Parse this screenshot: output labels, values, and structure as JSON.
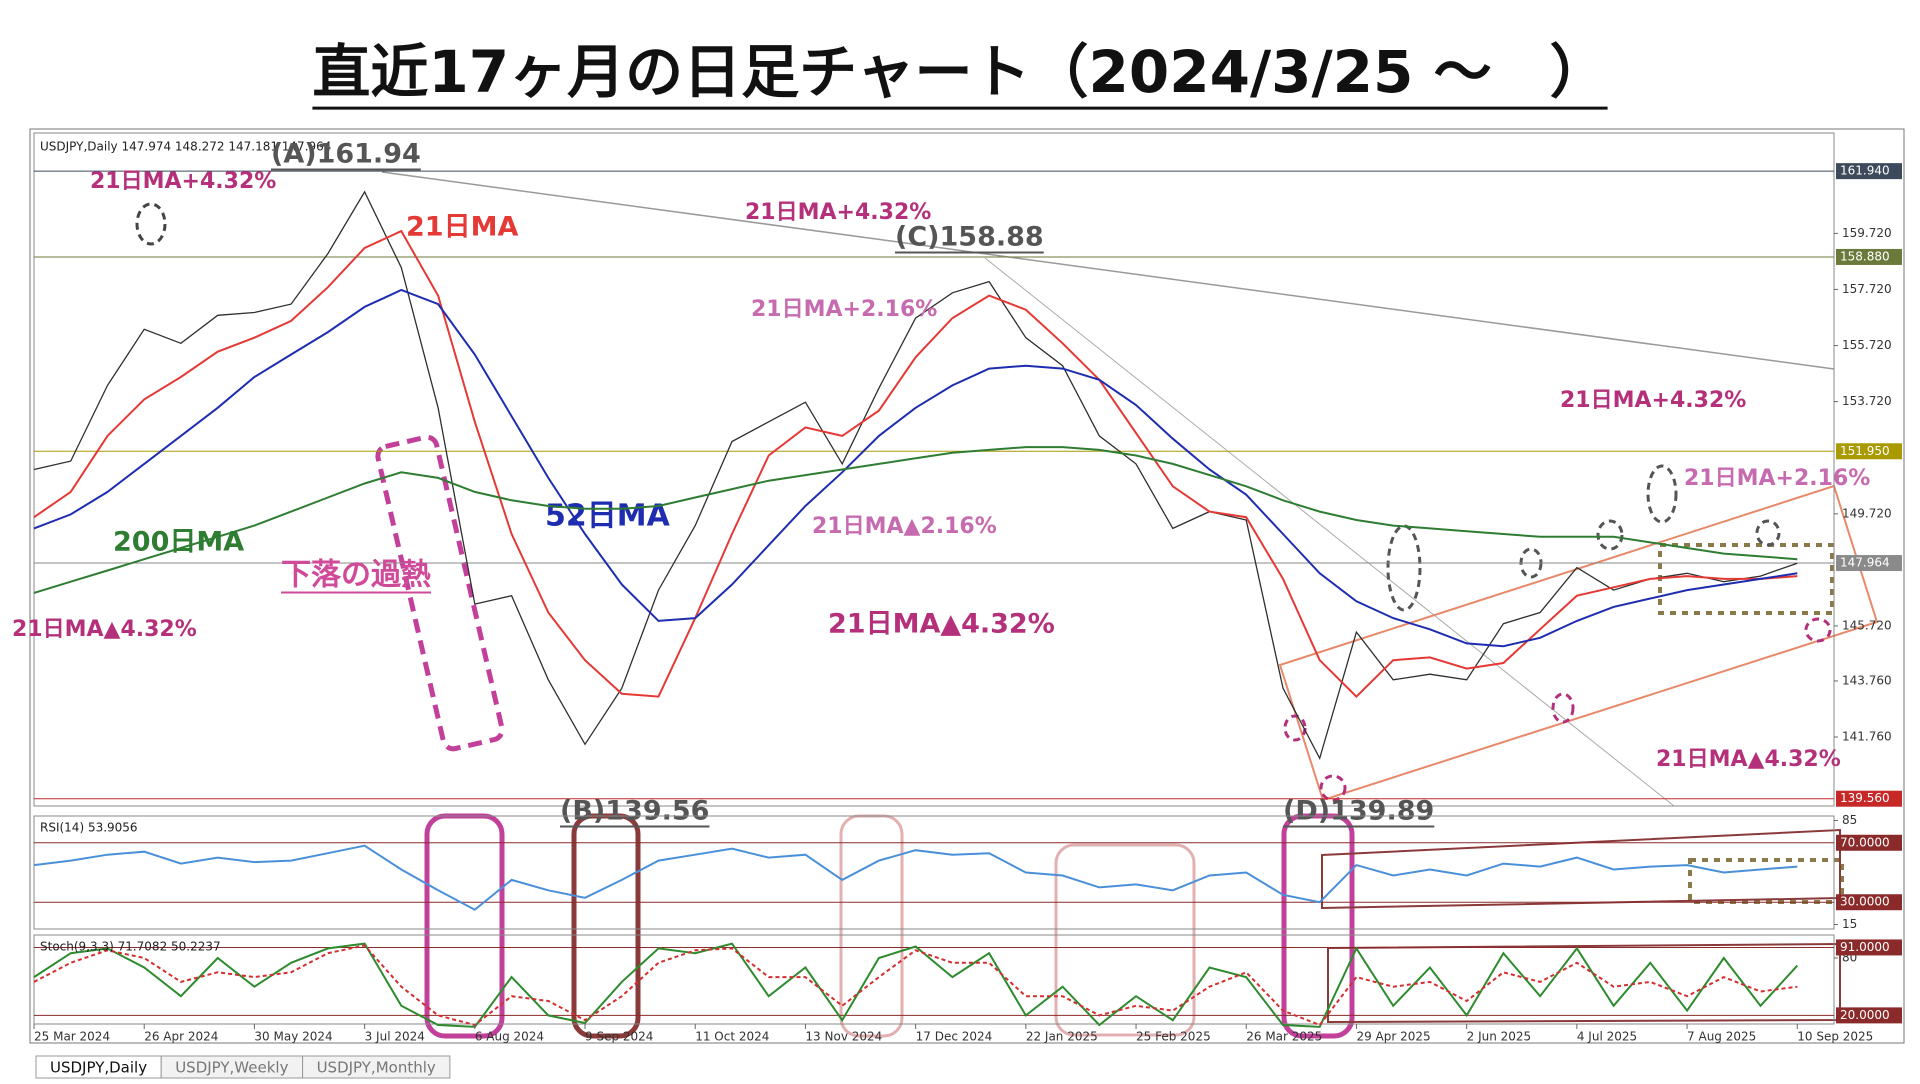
{
  "title": "直近17ヶ月の日足チャート（2024/3/25 ～　）",
  "tabs": [
    "USDJPY,Daily",
    "USDJPY,Weekly",
    "USDJPY,Monthly"
  ],
  "chart_data": [
    {
      "type": "line",
      "info": "USDJPY,Daily  147.974 148.272 147.181 147.964",
      "x": [
        0,
        8,
        16,
        24,
        32,
        40,
        48,
        56,
        64,
        72,
        80,
        88,
        96,
        104,
        112,
        120,
        128,
        136,
        144,
        152,
        160,
        168,
        176,
        184,
        192,
        200,
        208,
        216,
        224,
        232,
        240,
        248,
        256,
        264,
        272,
        280,
        288,
        296,
        304,
        312,
        320,
        328,
        336,
        344,
        352,
        360,
        368,
        376,
        384
      ],
      "xlim": [
        0,
        392
      ],
      "ylim": [
        139.3,
        163.3
      ],
      "yticks": [
        {
          "value": 159.72,
          "label": "159.720"
        },
        {
          "value": 157.72,
          "label": "157.720"
        },
        {
          "value": 155.72,
          "label": "155.720"
        },
        {
          "value": 153.72,
          "label": "153.720"
        },
        {
          "value": 149.72,
          "label": "149.720"
        },
        {
          "value": 145.72,
          "label": "145.720"
        },
        {
          "value": 143.76,
          "label": "143.760"
        },
        {
          "value": 141.76,
          "label": "141.760"
        }
      ],
      "level_lines": [
        {
          "value": 161.94,
          "label": "161.940",
          "color": "#3d4a5c"
        },
        {
          "value": 158.88,
          "label": "158.880",
          "color": "#6b7a3a"
        },
        {
          "value": 151.95,
          "label": "151.950",
          "color": "#a89a00"
        },
        {
          "value": 147.964,
          "label": "147.964",
          "color": "#8a8a8a"
        },
        {
          "value": 139.56,
          "label": "139.560",
          "color": "#c62828"
        }
      ],
      "series": [
        {
          "color": "#2f2f2f",
          "values": [
            151.3,
            151.6,
            154.3,
            156.3,
            155.8,
            156.8,
            156.9,
            157.2,
            159.0,
            161.2,
            158.5,
            153.5,
            146.5,
            146.8,
            143.8,
            141.5,
            143.5,
            147.0,
            149.3,
            152.3,
            153.0,
            153.7,
            151.5,
            154.2,
            156.7,
            157.6,
            158.0,
            156.0,
            155.0,
            152.5,
            151.5,
            149.2,
            149.8,
            149.5,
            143.5,
            141.0,
            145.5,
            143.8,
            144.0,
            143.8,
            145.8,
            146.2,
            147.8,
            147.0,
            147.4,
            147.6,
            147.3,
            147.5,
            147.96
          ]
        },
        {
          "name": "21日MA",
          "color": "#e53935",
          "values": [
            149.6,
            150.5,
            152.5,
            153.8,
            154.6,
            155.5,
            156.0,
            156.6,
            157.8,
            159.2,
            159.8,
            157.5,
            153.0,
            149.0,
            146.2,
            144.5,
            143.3,
            143.2,
            146.0,
            149.0,
            151.8,
            152.8,
            152.5,
            153.4,
            155.3,
            156.7,
            157.5,
            157.0,
            155.8,
            154.5,
            152.6,
            150.7,
            149.8,
            149.6,
            147.4,
            144.5,
            143.2,
            144.5,
            144.6,
            144.2,
            144.4,
            145.6,
            146.8,
            147.1,
            147.4,
            147.5,
            147.4,
            147.4,
            147.5
          ]
        },
        {
          "name": "52日MA",
          "color": "#1e2db0",
          "values": [
            149.2,
            149.7,
            150.5,
            151.5,
            152.5,
            153.5,
            154.6,
            155.4,
            156.2,
            157.1,
            157.7,
            157.2,
            155.4,
            153.2,
            151.0,
            149.0,
            147.2,
            145.9,
            146.0,
            147.2,
            148.6,
            150.0,
            151.2,
            152.5,
            153.5,
            154.3,
            154.9,
            155.0,
            154.9,
            154.5,
            153.6,
            152.4,
            151.3,
            150.4,
            149.0,
            147.6,
            146.6,
            146.0,
            145.6,
            145.1,
            145.0,
            145.3,
            145.9,
            146.4,
            146.7,
            147.0,
            147.2,
            147.4,
            147.6
          ]
        },
        {
          "name": "200日MA",
          "color": "#2e7d32",
          "values": [
            146.9,
            147.3,
            147.7,
            148.1,
            148.5,
            148.9,
            149.3,
            149.8,
            150.3,
            150.8,
            151.2,
            151.0,
            150.5,
            150.2,
            150.0,
            149.9,
            149.9,
            150.0,
            150.3,
            150.6,
            150.9,
            151.1,
            151.3,
            151.5,
            151.7,
            151.9,
            152.0,
            152.1,
            152.1,
            152.0,
            151.8,
            151.5,
            151.1,
            150.7,
            150.2,
            149.8,
            149.5,
            149.3,
            149.2,
            149.1,
            149.0,
            148.9,
            148.9,
            148.9,
            148.7,
            148.5,
            148.3,
            148.2,
            148.1
          ]
        }
      ],
      "annotations": [
        {
          "text": "(A)161.94",
          "color": "#555555",
          "underline": true
        },
        {
          "text": "21日MA+4.32%",
          "color": "#b5307a"
        },
        {
          "text": "21日MA+4.32%",
          "color": "#b5307a"
        },
        {
          "text": "(C)158.88",
          "color": "#555555",
          "underline": true
        },
        {
          "text": "21日MA+2.16%",
          "color": "#c76bb0"
        },
        {
          "text": "下落の過熱",
          "color": "#d04a9a",
          "underline": true
        },
        {
          "text": "21日MA▲4.32%",
          "color": "#b5307a"
        },
        {
          "text": "21日MA▲2.16%",
          "color": "#c76bb0"
        },
        {
          "text": "21日MA▲4.32%",
          "color": "#b5307a"
        },
        {
          "text": "21日MA+4.32%",
          "color": "#b5307a"
        },
        {
          "text": "21日MA+2.16%",
          "color": "#c76bb0"
        },
        {
          "text": "21日MA▲4.32%",
          "color": "#b5307a"
        },
        {
          "text": "(B)139.56",
          "color": "#555555",
          "underline": true
        },
        {
          "text": "(D)139.89",
          "color": "#555555",
          "underline": true
        }
      ]
    },
    {
      "type": "line",
      "title": "RSI(14) 53.9056",
      "x": [
        0,
        8,
        16,
        24,
        32,
        40,
        48,
        56,
        64,
        72,
        80,
        88,
        96,
        104,
        112,
        120,
        128,
        136,
        144,
        152,
        160,
        168,
        176,
        184,
        192,
        200,
        208,
        216,
        224,
        232,
        240,
        248,
        256,
        264,
        272,
        280,
        288,
        296,
        304,
        312,
        320,
        328,
        336,
        344,
        352,
        360,
        368,
        376,
        384
      ],
      "xlim": [
        0,
        392
      ],
      "ylim": [
        12,
        88
      ],
      "yticks": [
        85,
        15
      ],
      "level_lines": [
        {
          "value": 70,
          "label": "70.0000",
          "color": "#8b2a2a"
        },
        {
          "value": 30,
          "label": "30.0000",
          "color": "#8b2a2a"
        }
      ],
      "series": [
        {
          "color": "#4a90d9",
          "values": [
            55,
            58,
            62,
            64,
            56,
            60,
            57,
            58,
            63,
            68,
            52,
            38,
            25,
            45,
            38,
            33,
            45,
            58,
            62,
            66,
            60,
            62,
            45,
            58,
            65,
            62,
            63,
            50,
            48,
            40,
            42,
            38,
            48,
            50,
            35,
            30,
            55,
            48,
            52,
            48,
            56,
            54,
            60,
            52,
            54,
            55,
            50,
            52,
            54
          ]
        }
      ]
    },
    {
      "type": "line",
      "title": "Stoch(9,3,3) 71.7082 50.2237",
      "x": [
        0,
        8,
        16,
        24,
        32,
        40,
        48,
        56,
        64,
        72,
        80,
        88,
        96,
        104,
        112,
        120,
        128,
        136,
        144,
        152,
        160,
        168,
        176,
        184,
        192,
        200,
        208,
        216,
        224,
        232,
        240,
        248,
        256,
        264,
        272,
        280,
        288,
        296,
        304,
        312,
        320,
        328,
        336,
        344,
        352,
        360,
        368,
        376,
        384
      ],
      "xlim": [
        0,
        392
      ],
      "ylim": [
        11,
        104
      ],
      "yticks": [
        80
      ],
      "level_lines": [
        {
          "value": 91,
          "label": "91.0000",
          "color": "#8b2a2a"
        },
        {
          "value": 20,
          "label": "20.0000",
          "color": "#8b2a2a"
        }
      ],
      "xticks": [
        {
          "value": 0,
          "label": "25 Mar 2024"
        },
        {
          "value": 24,
          "label": "26 Apr 2024"
        },
        {
          "value": 48,
          "label": "30 May 2024"
        },
        {
          "value": 72,
          "label": "3 Jul 2024"
        },
        {
          "value": 96,
          "label": "6 Aug 2024"
        },
        {
          "value": 120,
          "label": "9 Sep 2024"
        },
        {
          "value": 144,
          "label": "11 Oct 2024"
        },
        {
          "value": 168,
          "label": "13 Nov 2024"
        },
        {
          "value": 192,
          "label": "17 Dec 2024"
        },
        {
          "value": 216,
          "label": "22 Jan 2025"
        },
        {
          "value": 240,
          "label": "25 Feb 2025"
        },
        {
          "value": 264,
          "label": "26 Mar 2025"
        },
        {
          "value": 288,
          "label": "29 Apr 2025"
        },
        {
          "value": 312,
          "label": "2 Jun 2025"
        },
        {
          "value": 336,
          "label": "4 Jul 2025"
        },
        {
          "value": 360,
          "label": "7 Aug 2025"
        },
        {
          "value": 384,
          "label": "10 Sep 2025"
        }
      ],
      "series": [
        {
          "color": "#2e8b2e",
          "values": [
            60,
            85,
            90,
            70,
            40,
            80,
            50,
            75,
            90,
            95,
            30,
            10,
            8,
            60,
            20,
            12,
            55,
            90,
            85,
            95,
            40,
            70,
            15,
            80,
            92,
            60,
            85,
            20,
            50,
            10,
            40,
            15,
            70,
            60,
            10,
            8,
            90,
            30,
            70,
            20,
            85,
            40,
            90,
            30,
            75,
            25,
            80,
            30,
            72
          ]
        },
        {
          "color": "#d32f2f",
          "style": "dashed",
          "values": [
            55,
            75,
            88,
            80,
            55,
            65,
            60,
            65,
            85,
            93,
            50,
            20,
            10,
            40,
            35,
            15,
            40,
            75,
            88,
            90,
            60,
            60,
            30,
            60,
            88,
            75,
            75,
            40,
            40,
            20,
            30,
            25,
            50,
            65,
            25,
            10,
            60,
            50,
            55,
            35,
            65,
            55,
            75,
            50,
            55,
            40,
            60,
            45,
            50
          ]
        }
      ]
    }
  ]
}
